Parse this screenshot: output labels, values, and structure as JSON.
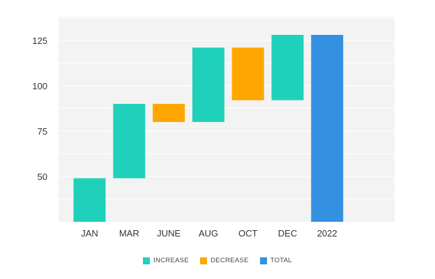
{
  "chart_data": {
    "type": "bar",
    "subtype": "waterfall",
    "categories": [
      "JAN",
      "MAR",
      "JUNE",
      "AUG",
      "OCT",
      "DEC",
      "2022"
    ],
    "segments": [
      {
        "category": "JAN",
        "kind": "increase",
        "start": 25,
        "end": 49
      },
      {
        "category": "MAR",
        "kind": "increase",
        "start": 49,
        "end": 90
      },
      {
        "category": "JUNE",
        "kind": "decrease",
        "start": 90,
        "end": 80
      },
      {
        "category": "AUG",
        "kind": "increase",
        "start": 80,
        "end": 121
      },
      {
        "category": "OCT",
        "kind": "decrease",
        "start": 121,
        "end": 92
      },
      {
        "category": "DEC",
        "kind": "increase",
        "start": 92,
        "end": 128
      },
      {
        "category": "2022",
        "kind": "total",
        "start": 25,
        "end": 128
      }
    ],
    "yticks": [
      50,
      75,
      100,
      125
    ],
    "ylim": [
      25,
      138
    ],
    "grid": true,
    "legend_position": "bottom-center",
    "legend": [
      {
        "key": "increase",
        "label": "INCREASE"
      },
      {
        "key": "decrease",
        "label": "DECREASE"
      },
      {
        "key": "total",
        "label": "TOTAL"
      }
    ],
    "colors": {
      "increase": "#1fd1bb",
      "decrease": "#ffa600",
      "total": "#3490e0",
      "plot_background": "#f3f3f3",
      "grid": "#ffffff"
    }
  }
}
